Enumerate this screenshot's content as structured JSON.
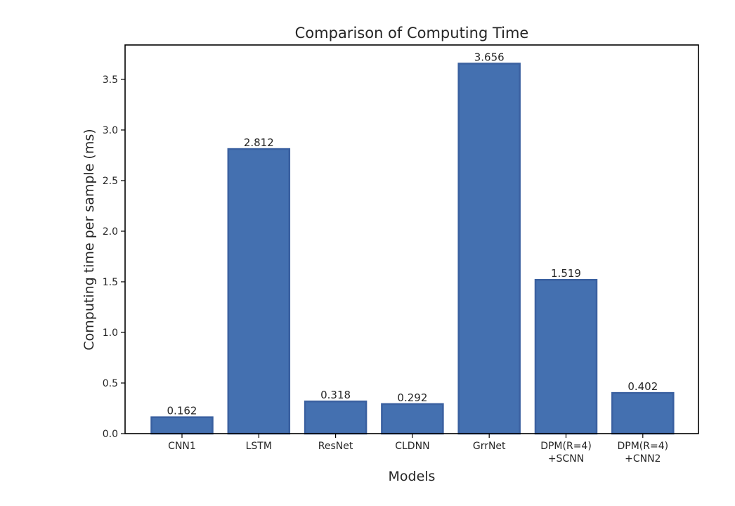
{
  "chart_data": {
    "type": "bar",
    "title": "Comparison of Computing Time",
    "xlabel": "Models",
    "ylabel": "Computing time per sample (ms)",
    "categories": [
      [
        "CNN1"
      ],
      [
        "LSTM"
      ],
      [
        "ResNet"
      ],
      [
        "CLDNN"
      ],
      [
        "GrrNet"
      ],
      [
        "DPM(R=4)",
        "+SCNN"
      ],
      [
        "DPM(R=4)",
        "+CNN2"
      ]
    ],
    "values": [
      0.162,
      2.812,
      0.318,
      0.292,
      3.656,
      1.519,
      0.402
    ],
    "value_labels": [
      "0.162",
      "2.812",
      "0.318",
      "0.292",
      "3.656",
      "1.519",
      "0.402"
    ],
    "yticks": [
      "0.0",
      "0.5",
      "1.0",
      "1.5",
      "2.0",
      "2.5",
      "3.0",
      "3.5"
    ],
    "ylim": [
      0,
      3.84
    ],
    "grid": false,
    "legend": "none",
    "colors": {
      "bar": "#4470b0",
      "bar_edge": "#3a60a0",
      "axis": "#000000"
    }
  }
}
